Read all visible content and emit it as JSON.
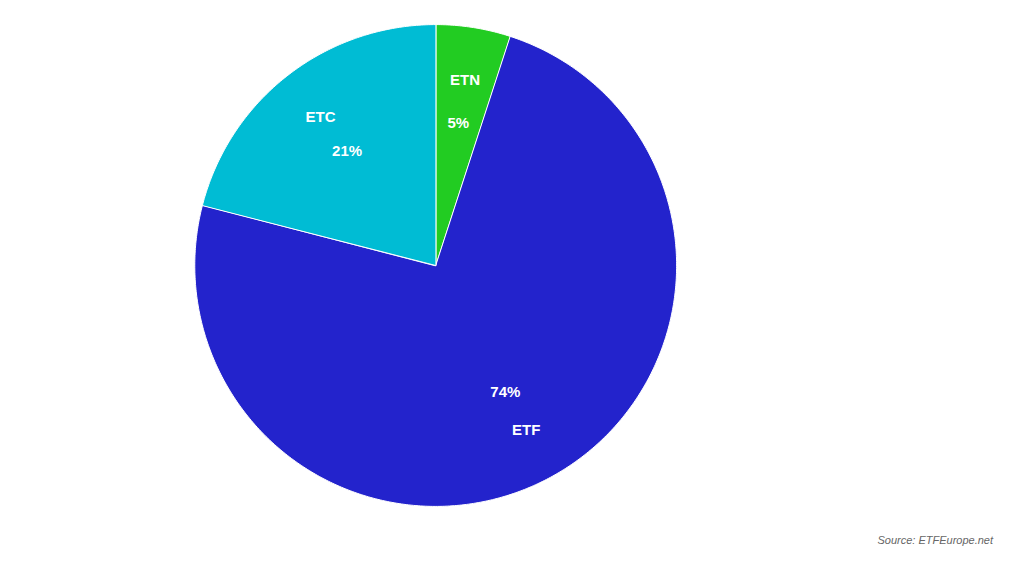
{
  "chart_data": {
    "type": "pie",
    "categories": [
      "ETN",
      "ETF",
      "ETC"
    ],
    "values": [
      5,
      74,
      21
    ],
    "value_labels": [
      "5%",
      "74%",
      "21%"
    ],
    "colors": [
      "#22cc22",
      "#2323cc",
      "#00bcd4"
    ],
    "data_labels": true,
    "annotations": [
      "Source: ETFEurope.net"
    ]
  }
}
